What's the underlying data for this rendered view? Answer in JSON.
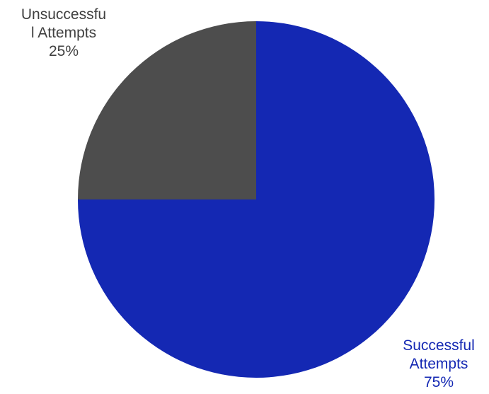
{
  "chart_data": {
    "type": "pie",
    "title": "",
    "slices": [
      {
        "name": "Successful Attempts",
        "label_lines": [
          "Successful",
          "Attempts",
          "75%"
        ],
        "value": 75,
        "color": "#1428b3",
        "label_color": "#1428b3"
      },
      {
        "name": "Unsuccessful Attempts",
        "label_lines": [
          "Unsuccessfu",
          "l Attempts",
          "25%"
        ],
        "value": 25,
        "color": "#4d4d4d",
        "label_color": "#404040"
      }
    ],
    "start_angle_deg": 0,
    "direction": "clockwise",
    "legend": "none"
  }
}
